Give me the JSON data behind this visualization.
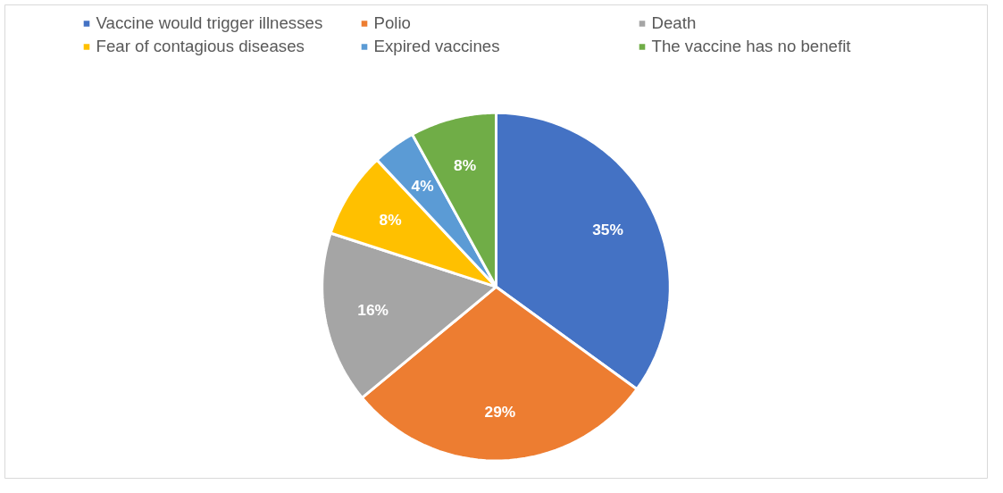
{
  "chart_data": {
    "type": "pie",
    "categories": [
      "Vaccine would trigger illnesses",
      "Polio",
      "Death",
      "Fear of contagious diseases",
      "Expired vaccines",
      "The vaccine has no benefit"
    ],
    "values": [
      35,
      29,
      16,
      8,
      4,
      8
    ],
    "colors": [
      "#4472c4",
      "#ed7d31",
      "#a5a5a5",
      "#ffc000",
      "#5b9bd5",
      "#70ad47"
    ],
    "value_labels": [
      "35%",
      "29%",
      "16%",
      "8%",
      "4%",
      "8%"
    ],
    "legend": "top"
  }
}
